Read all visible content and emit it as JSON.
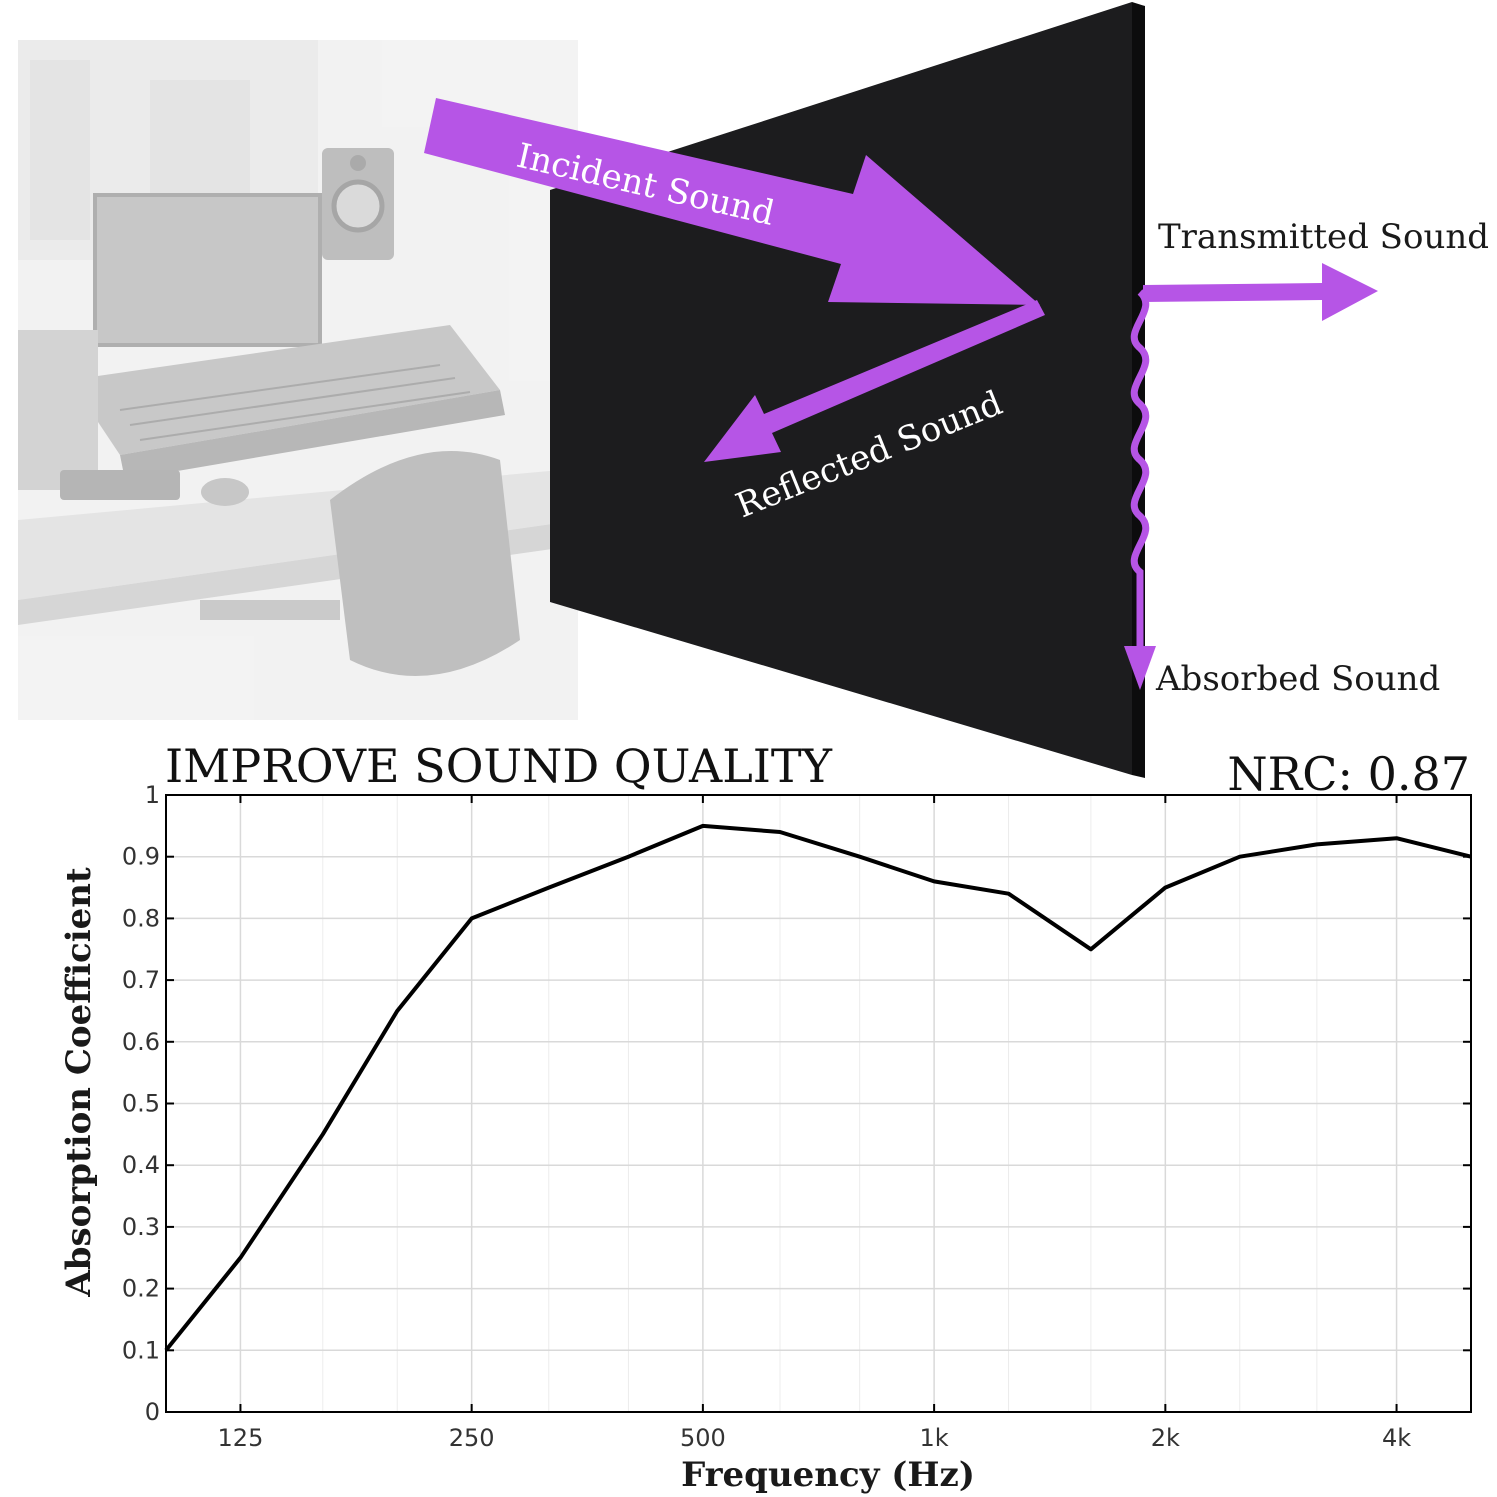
{
  "labels": {
    "incident": "Incident Sound",
    "transmitted": "Transmitted Sound",
    "reflected": "Reflected Sound",
    "absorbed": "Absorbed Sound"
  },
  "headline": "IMPROVE SOUND QUALITY",
  "nrc": "NRC: 0.87",
  "colors": {
    "arrow": "#b655e6",
    "panel": "#1c1c1e",
    "line": "#000000",
    "grid": "#d9d9d9"
  },
  "icons": [
    "studio-photo",
    "acoustic-panel",
    "incident-arrow",
    "reflected-arrow",
    "transmitted-arrow",
    "absorbed-wave"
  ],
  "chart_data": {
    "type": "line",
    "xlabel": "Frequency (Hz)",
    "ylabel": "Absorption Coefficient",
    "x_scale": "log2",
    "xlim": [
      100,
      5000
    ],
    "ylim": [
      0,
      1
    ],
    "x_ticks": [
      {
        "value": 125,
        "label": "125"
      },
      {
        "value": 250,
        "label": "250"
      },
      {
        "value": 500,
        "label": "500"
      },
      {
        "value": 1000,
        "label": "1k"
      },
      {
        "value": 2000,
        "label": "2k"
      },
      {
        "value": 4000,
        "label": "4k"
      }
    ],
    "y_ticks": [
      {
        "value": 0,
        "label": "0"
      },
      {
        "value": 0.1,
        "label": "0.1"
      },
      {
        "value": 0.2,
        "label": "0.2"
      },
      {
        "value": 0.3,
        "label": "0.3"
      },
      {
        "value": 0.4,
        "label": "0.4"
      },
      {
        "value": 0.5,
        "label": "0.5"
      },
      {
        "value": 0.6,
        "label": "0.6"
      },
      {
        "value": 0.7,
        "label": "0.7"
      },
      {
        "value": 0.8,
        "label": "0.8"
      },
      {
        "value": 0.9,
        "label": "0.9"
      },
      {
        "value": 1,
        "label": "1"
      }
    ],
    "grid": true,
    "series": [
      {
        "x": [
          100,
          125,
          160,
          200,
          250,
          315,
          400,
          500,
          630,
          800,
          1000,
          1250,
          1600,
          2000,
          2500,
          3150,
          4000,
          5000
        ],
        "y": [
          0.1,
          0.25,
          0.45,
          0.65,
          0.8,
          0.85,
          0.9,
          0.95,
          0.94,
          0.9,
          0.86,
          0.84,
          0.75,
          0.85,
          0.9,
          0.92,
          0.93,
          0.9
        ]
      }
    ]
  }
}
